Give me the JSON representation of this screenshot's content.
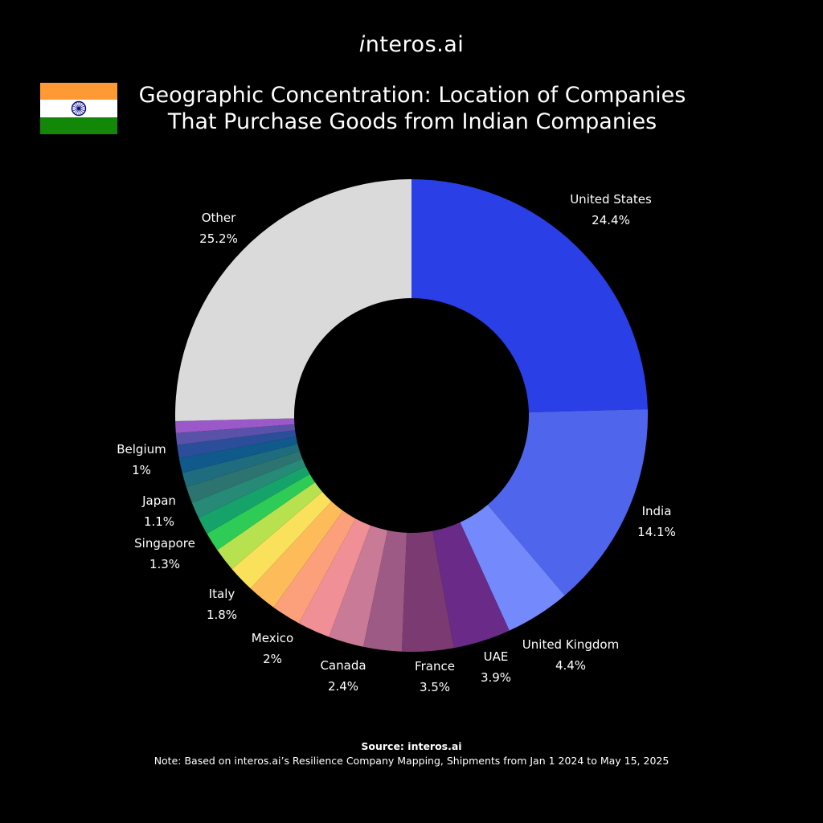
{
  "header": {
    "logo_prefix": "i",
    "logo_rest": "nteros.ai",
    "title_line1": "Geographic Concentration: Location of Companies",
    "title_line2": "That Purchase Goods from Indian Companies"
  },
  "flag": {
    "saffron": "#FF9933",
    "white": "#FFFFFF",
    "green": "#138808",
    "chakra": "#000080"
  },
  "footer": {
    "source": "Source: interos.ai",
    "note": "Note: Based on interos.ai’s Resilience Company Mapping, Shipments from Jan 1 2024 to May 15, 2025"
  },
  "chart_data": {
    "type": "pie",
    "variant": "donut",
    "title": "Geographic Concentration: Location of Companies That Purchase Goods from Indian Companies",
    "slices": [
      {
        "name": "United States",
        "value": 24.4,
        "label": "24.4%",
        "color": "#2A3FE6"
      },
      {
        "name": "India",
        "value": 14.1,
        "label": "14.1%",
        "color": "#4F66EC"
      },
      {
        "name": "United Kingdom",
        "value": 4.4,
        "label": "4.4%",
        "color": "#7489FB"
      },
      {
        "name": "UAE",
        "value": 3.9,
        "label": "3.9%",
        "color": "#6A2B88"
      },
      {
        "name": "France",
        "value": 3.5,
        "label": "3.5%",
        "color": "#7B3A72"
      },
      {
        "name": "",
        "value": 2.6,
        "color": "#9C5A84"
      },
      {
        "name": "Canada",
        "value": 2.4,
        "label": "2.4%",
        "color": "#C97A96"
      },
      {
        "name": "",
        "value": 2.2,
        "color": "#F08F96"
      },
      {
        "name": "Mexico",
        "value": 2.0,
        "label": "2%",
        "color": "#FBA07A"
      },
      {
        "name": "",
        "value": 2.0,
        "color": "#FDBB5A"
      },
      {
        "name": "Italy",
        "value": 1.8,
        "label": "1.8%",
        "color": "#F9E15C"
      },
      {
        "name": "",
        "value": 1.6,
        "color": "#B8E150"
      },
      {
        "name": "Singapore",
        "value": 1.3,
        "label": "1.3%",
        "color": "#2FCB57"
      },
      {
        "name": "",
        "value": 1.2,
        "color": "#16A36A"
      },
      {
        "name": "Japan",
        "value": 1.1,
        "label": "1.1%",
        "color": "#268A76"
      },
      {
        "name": "",
        "value": 1.1,
        "color": "#2D7470"
      },
      {
        "name": "",
        "value": 1.0,
        "color": "#1F6C7E"
      },
      {
        "name": "Belgium",
        "value": 1.0,
        "label": "1%",
        "color": "#105A8B"
      },
      {
        "name": "",
        "value": 0.9,
        "color": "#2A4E9A"
      },
      {
        "name": "",
        "value": 0.8,
        "color": "#5A52A8"
      },
      {
        "name": "",
        "value": 0.8,
        "color": "#9A58C8"
      },
      {
        "name": "Other",
        "value": 25.2,
        "label": "25.2%",
        "color": "#DADADA"
      }
    ],
    "legend": "none"
  }
}
